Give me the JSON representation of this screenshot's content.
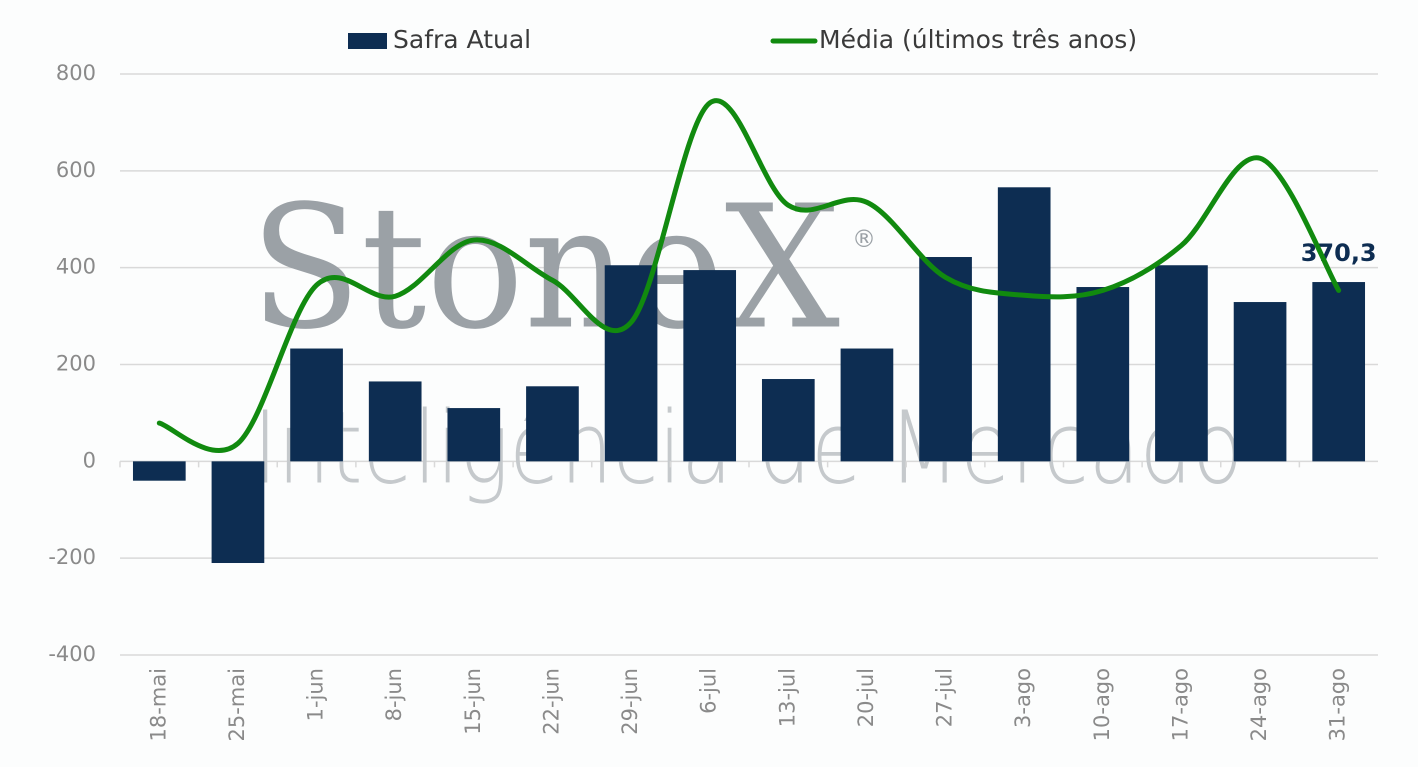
{
  "chart_data": {
    "type": "bar-line",
    "watermark": {
      "brand": "StoneX",
      "mark": "®",
      "tagline": "Inteligência de Mercado"
    },
    "categories": [
      "18-mai",
      "25-mai",
      "1-jun",
      "8-jun",
      "15-jun",
      "22-jun",
      "29-jun",
      "6-jul",
      "13-jul",
      "20-jul",
      "27-jul",
      "3-ago",
      "10-ago",
      "17-ago",
      "24-ago",
      "31-ago"
    ],
    "series": [
      {
        "name": "Safra Atual",
        "type": "bar",
        "color": "#0d2d52",
        "values": [
          -40,
          -210,
          233,
          165,
          110,
          155,
          405,
          395,
          170,
          233,
          422,
          566,
          360,
          405,
          329,
          370.3
        ],
        "value_labels": [
          null,
          null,
          null,
          null,
          null,
          null,
          null,
          null,
          null,
          null,
          null,
          null,
          null,
          null,
          null,
          "370,3"
        ]
      },
      {
        "name": "Média (últimos três anos)",
        "type": "line",
        "color": "#118a0f",
        "values": [
          79,
          37,
          364,
          341,
          457,
          374,
          287,
          740,
          529,
          535,
          380,
          343,
          353,
          446,
          626,
          353
        ]
      }
    ],
    "ylim": [
      -400,
      800
    ],
    "yticks": [
      -400,
      -200,
      0,
      200,
      400,
      600,
      800
    ],
    "grid": true,
    "legend": "top"
  }
}
